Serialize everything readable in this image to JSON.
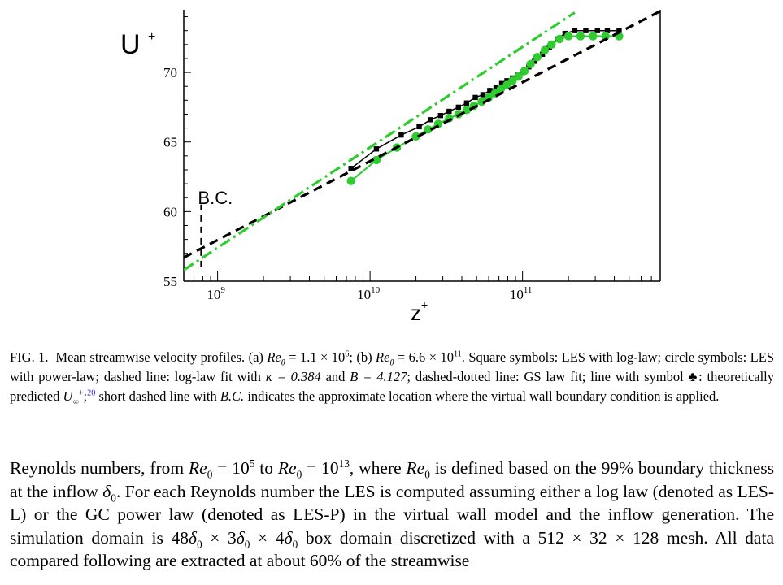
{
  "chart_data": {
    "type": "line",
    "title": "",
    "xlabel": "z+",
    "ylabel": "U+",
    "xscale": "log",
    "xlim": [
      600000000,
      800000000000
    ],
    "ylim": [
      55,
      74.5
    ],
    "yticks": [
      55,
      60,
      65,
      70
    ],
    "xticks": [
      {
        "value": 1000000000,
        "mantissa": "10",
        "exp": "9"
      },
      {
        "value": 10000000000,
        "mantissa": "10",
        "exp": "10"
      },
      {
        "value": 100000000000,
        "mantissa": "10",
        "exp": "11"
      }
    ],
    "series": [
      {
        "role": "LES log-law",
        "style": "square-markers",
        "color": "#000000",
        "x": [
          7500000000.0,
          11000000000.0,
          16000000000.0,
          21000000000.0,
          25000000000.0,
          29000000000.0,
          33000000000.0,
          38000000000.0,
          43000000000.0,
          49000000000.0,
          55000000000.0,
          61000000000.0,
          67000000000.0,
          73000000000.0,
          79000000000.0,
          86000000000.0,
          93000000000.0,
          100000000000.0,
          110000000000.0,
          120000000000.0,
          135000000000.0,
          150000000000.0,
          170000000000.0,
          190000000000.0,
          220000000000.0,
          260000000000.0,
          310000000000.0,
          360000000000.0,
          430000000000.0
        ],
        "y": [
          63.1,
          64.5,
          65.5,
          66.1,
          66.6,
          66.9,
          67.2,
          67.5,
          67.8,
          68.2,
          68.4,
          68.7,
          68.9,
          69.2,
          69.4,
          69.6,
          69.8,
          70.0,
          70.4,
          70.8,
          71.3,
          71.8,
          72.4,
          72.8,
          73.0,
          73.0,
          73.0,
          73.0,
          73.0
        ]
      },
      {
        "role": "LES power-law",
        "style": "circle-markers",
        "color": "#2ecc2e",
        "x": [
          7500000000.0,
          11000000000.0,
          15000000000.0,
          20000000000.0,
          24000000000.0,
          28000000000.0,
          33000000000.0,
          38000000000.0,
          43000000000.0,
          48000000000.0,
          54000000000.0,
          60000000000.0,
          66000000000.0,
          72000000000.0,
          79000000000.0,
          86000000000.0,
          94000000000.0,
          103000000000.0,
          113000000000.0,
          125000000000.0,
          140000000000.0,
          155000000000.0,
          175000000000.0,
          200000000000.0,
          240000000000.0,
          290000000000.0,
          350000000000.0,
          430000000000.0
        ],
        "y": [
          62.2,
          63.7,
          64.6,
          65.4,
          65.9,
          66.3,
          66.7,
          67.0,
          67.3,
          67.6,
          67.9,
          68.2,
          68.5,
          68.8,
          69.1,
          69.4,
          69.7,
          70.1,
          70.6,
          71.1,
          71.6,
          72.0,
          72.4,
          72.6,
          72.6,
          72.6,
          72.6,
          72.6
        ]
      },
      {
        "role": "log-law fit",
        "style": "dashed",
        "color": "#000000",
        "x": [
          600000000.0,
          800000000000.0
        ],
        "y": [
          56.7,
          74.4
        ]
      },
      {
        "role": "GS law fit",
        "style": "dash-dot",
        "color": "#2ecc2e",
        "x": [
          600000000.0,
          220000000000.0
        ],
        "y": [
          55.8,
          74.3
        ]
      }
    ],
    "annotations": [
      {
        "text": "B.C.",
        "x": 800000000.0,
        "y": 61.0
      }
    ],
    "bc_line": {
      "x": 780000000.0,
      "y": [
        56.0,
        60.5
      ]
    }
  },
  "caption": {
    "prefix": "FIG. 1.",
    "text_1": "Mean streamwise velocity profiles. (a) ",
    "re_theta_a": "Re",
    "re_theta_a_val": " = 1.1 × 10",
    "re_theta_a_exp": "6",
    "text_2": "; (b) ",
    "re_theta_b": "Re",
    "re_theta_b_val": " = 6.6 × 10",
    "re_theta_b_exp": "11",
    "text_3": ". Square symbols: LES with log-law; circle symbols: LES with power-law; dashed line: log-law fit with ",
    "kappa": "κ = 0.384",
    "text_4": " and ",
    "b_const": "B = 4.127",
    "text_5": "; dashed-dotted line: GS law fit; line with symbol ♣: theoretically predicted ",
    "u_inf": "U",
    "text_6": ";",
    "ref": "20",
    "text_7": " short dashed line with ",
    "bc": "B.C.",
    "text_8": " indicates the approximate location where the virtual wall boundary condition is applied."
  },
  "body": {
    "t1": "Reynolds numbers, from ",
    "re0_a": "Re",
    "re0_a_val": " = 10",
    "re0_a_exp": "5",
    "t2": " to ",
    "re0_b": "Re",
    "re0_b_val": " = 10",
    "re0_b_exp": "13",
    "t3": ", where ",
    "re0_c": "Re",
    "t4": " is defined based on the 99% boundary thickness at the inflow ",
    "delta0": "δ",
    "t5": ". For each Reynolds number the LES is computed assuming either a log law (denoted as LES-L) or the GC power law (denoted as LES-P) in the virtual wall model and the inflow generation. The simulation domain is 48",
    "t6": " × 3",
    "t7": " × 4",
    "t8": " box domain discretized with a 512 × 32 × 128 mesh. All data compared following are extracted at about 60% of the streamwise"
  }
}
